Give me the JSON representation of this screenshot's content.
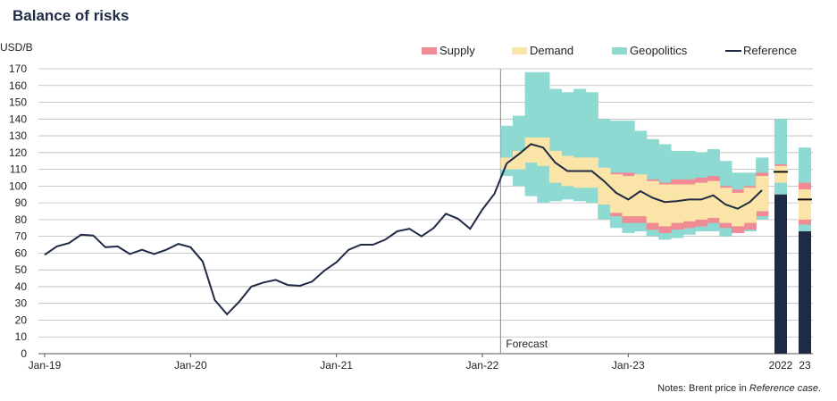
{
  "title": "Balance of risks",
  "notes_prefix": "Notes: Brent price in ",
  "notes_italic": "Reference case",
  "notes_suffix": ".",
  "colors": {
    "supply": "#f08b95",
    "demand": "#fbe4a7",
    "geopolitics": "#8ed9d2",
    "reference": "#1f2a44",
    "grid": "#b9b9b9",
    "bar": "#1f2a44"
  },
  "chart_data": {
    "type": "line",
    "title": "Balance of risks",
    "ylabel": "USD/B",
    "ylim": [
      0,
      170
    ],
    "yticks": [
      0,
      10,
      20,
      30,
      40,
      50,
      60,
      70,
      80,
      90,
      100,
      110,
      120,
      130,
      140,
      150,
      160,
      170
    ],
    "xlim_month_index": [
      0,
      59
    ],
    "x_ticks": [
      {
        "label": "Jan-19",
        "index": 0
      },
      {
        "label": "Jan-20",
        "index": 12
      },
      {
        "label": "Jan-21",
        "index": 24
      },
      {
        "label": "Jan-22",
        "index": 36
      },
      {
        "label": "Jan-23",
        "index": 48
      }
    ],
    "forecast_label": "Forecast",
    "forecast_start_index": 37.5,
    "legend": [
      "Supply",
      "Demand",
      "Geopolitics",
      "Reference"
    ],
    "history": {
      "name": "Brent price",
      "values": [
        59,
        64,
        66,
        71,
        70.5,
        63.5,
        64,
        59.5,
        62,
        59.5,
        62,
        65.5,
        63.5,
        55,
        32,
        23.5,
        31,
        40,
        42.5,
        44,
        41,
        40.5,
        43,
        49.5,
        54.5,
        62,
        65,
        65,
        68,
        73,
        74.5,
        70,
        75,
        83.5,
        80.5,
        74.5,
        86,
        95.5,
        113.5
      ]
    },
    "forecast": {
      "start_index": 38,
      "reference": [
        113.5,
        119,
        125,
        123,
        114,
        109,
        109,
        109,
        103,
        96,
        92,
        97,
        93,
        90.5,
        91,
        92,
        92,
        94.5,
        89,
        86.5,
        90.5,
        97.5
      ],
      "bands_lo_hi": {
        "geopolitics": [
          [
            106,
            136
          ],
          [
            100,
            142
          ],
          [
            94,
            168
          ],
          [
            90,
            168
          ],
          [
            91,
            158
          ],
          [
            92,
            156
          ],
          [
            91,
            158
          ],
          [
            90,
            156
          ],
          [
            80,
            140
          ],
          [
            75,
            139
          ],
          [
            72,
            139
          ],
          [
            73,
            133
          ],
          [
            70,
            128
          ],
          [
            68,
            125
          ],
          [
            69,
            121
          ],
          [
            71,
            121
          ],
          [
            73,
            120
          ],
          [
            73,
            122
          ],
          [
            70,
            115
          ],
          [
            72,
            108
          ],
          [
            73,
            108
          ],
          [
            80,
            117
          ]
        ],
        "demand": [
          [
            110,
            117
          ],
          [
            110,
            121
          ],
          [
            114,
            129
          ],
          [
            112,
            129
          ],
          [
            102,
            121
          ],
          [
            100,
            118
          ],
          [
            99,
            117
          ],
          [
            99,
            117
          ],
          [
            89,
            111
          ],
          [
            84,
            107
          ],
          [
            82,
            106
          ],
          [
            82,
            107
          ],
          [
            78,
            103
          ],
          [
            76,
            101
          ],
          [
            78,
            101
          ],
          [
            79,
            101
          ],
          [
            80,
            102
          ],
          [
            81,
            103
          ],
          [
            78,
            99
          ],
          [
            76,
            96
          ],
          [
            78,
            99
          ],
          [
            85,
            106
          ]
        ],
        "supply": [
          [
            113,
            117
          ],
          [
            116,
            121
          ],
          [
            120,
            128
          ],
          [
            116,
            126
          ],
          [
            109,
            118
          ],
          [
            106,
            117
          ],
          [
            105,
            116
          ],
          [
            104,
            115
          ],
          [
            89,
            100
          ],
          [
            82,
            108
          ],
          [
            78,
            108
          ],
          [
            78,
            106
          ],
          [
            74,
            104
          ],
          [
            72,
            102
          ],
          [
            74,
            104
          ],
          [
            75,
            104
          ],
          [
            76,
            105
          ],
          [
            78,
            106
          ],
          [
            75,
            100
          ],
          [
            72,
            98
          ],
          [
            74,
            100
          ],
          [
            82,
            108
          ]
        ]
      }
    },
    "bars": [
      {
        "label": "2022",
        "value": 95,
        "reference": 108.5,
        "supply_lo": 105,
        "supply_hi": 113,
        "demand_lo": 102,
        "demand_hi": 112,
        "geo_lo": 95,
        "geo_hi": 140
      },
      {
        "label": "23",
        "value": 73,
        "reference": 92,
        "supply_lo": 77,
        "supply_hi": 102,
        "demand_lo": 80,
        "demand_hi": 98,
        "geo_lo": 73,
        "geo_hi": 123
      }
    ]
  }
}
